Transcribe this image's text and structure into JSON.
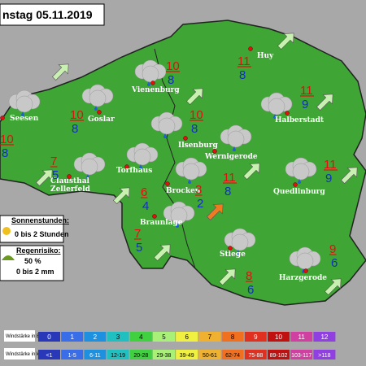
{
  "header": {
    "title": "nstag 05.11.2019"
  },
  "towns": [
    {
      "lines": [
        "Seesen"
      ]
    },
    {
      "lines": [
        "Goslar"
      ]
    },
    {
      "lines": [
        "Vienenburg"
      ]
    },
    {
      "lines": [
        "Huy"
      ]
    },
    {
      "lines": [
        "Halberstadt"
      ]
    },
    {
      "lines": [
        "Ilsenburg"
      ]
    },
    {
      "lines": [
        "Wernigerode"
      ]
    },
    {
      "lines": [
        "Clausthal",
        "Zellerfeld"
      ]
    },
    {
      "lines": [
        "Torfhaus"
      ]
    },
    {
      "lines": [
        "Brocken"
      ]
    },
    {
      "lines": [
        "Quedlinburg"
      ]
    },
    {
      "lines": [
        "Braunlage"
      ]
    },
    {
      "lines": [
        "Stiege"
      ]
    },
    {
      "lines": [
        "Harzgerode"
      ]
    }
  ],
  "temperatures": [
    {
      "max": "10",
      "min": "8"
    },
    {
      "max": "10",
      "min": "8"
    },
    {
      "max": "10",
      "min": "8"
    },
    {
      "max": "11",
      "min": "8"
    },
    {
      "max": "11",
      "min": "9"
    },
    {
      "max": "10",
      "min": "8"
    },
    {
      "max": "11",
      "min": "8"
    },
    {
      "max": "7",
      "min": "5"
    },
    {
      "max": "6",
      "min": "4"
    },
    {
      "max": "3",
      "min": "2"
    },
    {
      "max": "11",
      "min": "9"
    },
    {
      "max": "7",
      "min": "5"
    },
    {
      "max": "8",
      "min": "6"
    },
    {
      "max": "9",
      "min": "6"
    }
  ],
  "legend": {
    "sun_title": "Sonnenstunden:",
    "sun_value": "0 bis 2 Stunden",
    "rain_title": "Regenrisiko:",
    "rain_percent": "50 %",
    "rain_amount": "0 bis 2 mm"
  },
  "wind_scale": {
    "beaufort_label": "Windstärke in Beaufort",
    "kmh_label": "Windstärke in km/h",
    "beaufort": [
      "0",
      "1",
      "2",
      "3",
      "4",
      "5",
      "6",
      "7",
      "8",
      "9",
      "10",
      "11",
      "12"
    ],
    "kmh": [
      "<1",
      "1-5",
      "6-11",
      "12-19",
      "20-28",
      "29-38",
      "39-49",
      "50-61",
      "62-74",
      "75-88",
      "89-102",
      "103-117",
      ">118"
    ]
  }
}
